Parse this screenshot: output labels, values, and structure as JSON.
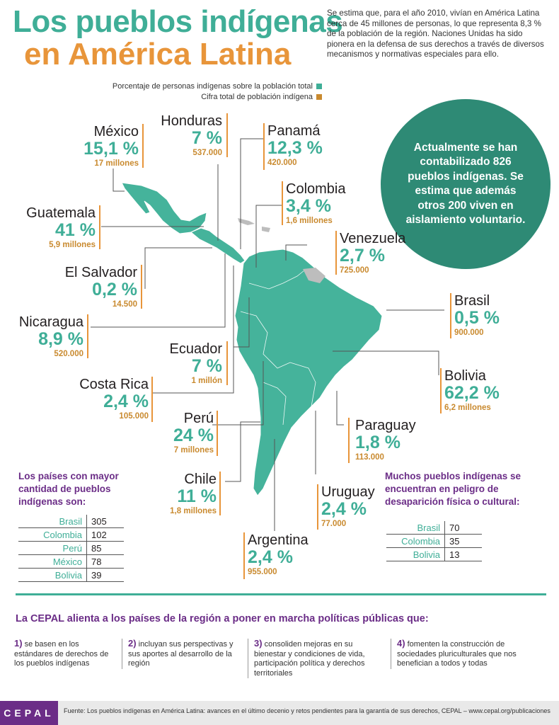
{
  "title": {
    "line1": "Los pueblos indígenas",
    "line2": "en América Latina"
  },
  "intro": "Se estima que, para el año 2010, vivían en América Latina cerca de 45 millones de personas, lo que representa 8,3 % de la población de la región. Naciones Unidas ha sido pionera en la defensa de sus derechos a través de diversos mecanismos y normativas especiales para ello.",
  "legend": {
    "percent": "Porcentaje de personas indígenas sobre la población total",
    "total": "Cifra total de población indígena",
    "percent_color": "#3fae97",
    "total_color": "#c98a2f"
  },
  "highlight": "Actualmente se han contabilizado 826 pueblos indígenas. Se estima que además otros 200 viven en aislamiento voluntario.",
  "countries": {
    "mexico": {
      "name": "México",
      "pct": "15,1 %",
      "pop": "17 millones"
    },
    "honduras": {
      "name": "Honduras",
      "pct": "7 %",
      "pop": "537.000"
    },
    "panama": {
      "name": "Panamá",
      "pct": "12,3 %",
      "pop": "420.000"
    },
    "colombia": {
      "name": "Colombia",
      "pct": "3,4 %",
      "pop": "1,6 millones"
    },
    "guatemala": {
      "name": "Guatemala",
      "pct": "41 %",
      "pop": "5,9 millones"
    },
    "venezuela": {
      "name": "Venezuela",
      "pct": "2,7 %",
      "pop": "725.000"
    },
    "el_salvador": {
      "name": "El Salvador",
      "pct": "0,2 %",
      "pop": "14.500"
    },
    "brasil": {
      "name": "Brasil",
      "pct": "0,5 %",
      "pop": "900.000"
    },
    "nicaragua": {
      "name": "Nicaragua",
      "pct": "8,9 %",
      "pop": "520.000"
    },
    "ecuador": {
      "name": "Ecuador",
      "pct": "7 %",
      "pop": "1 millón"
    },
    "bolivia": {
      "name": "Bolivia",
      "pct": "62,2 %",
      "pop": "6,2 millones"
    },
    "costa_rica": {
      "name": "Costa Rica",
      "pct": "2,4 %",
      "pop": "105.000"
    },
    "peru": {
      "name": "Perú",
      "pct": "24 %",
      "pop": "7 millones"
    },
    "paraguay": {
      "name": "Paraguay",
      "pct": "1,8 %",
      "pop": "113.000"
    },
    "chile": {
      "name": "Chile",
      "pct": "11 %",
      "pop": "1,8 millones"
    },
    "uruguay": {
      "name": "Uruguay",
      "pct": "2,4 %",
      "pop": "77.000"
    },
    "argentina": {
      "name": "Argentina",
      "pct": "2,4 %",
      "pop": "955.000"
    }
  },
  "most_peoples": {
    "title": "Los países con mayor cantidad de pueblos indígenas son:",
    "rows": [
      {
        "country": "Brasil",
        "value": "305"
      },
      {
        "country": "Colombia",
        "value": "102"
      },
      {
        "country": "Perú",
        "value": "85"
      },
      {
        "country": "México",
        "value": "78"
      },
      {
        "country": "Bolivia",
        "value": "39"
      }
    ]
  },
  "danger": {
    "title": "Muchos pueblos indígenas se encuentran en peligro de desaparición física o cultural:",
    "rows": [
      {
        "country": "Brasil",
        "value": "70"
      },
      {
        "country": "Colombia",
        "value": "35"
      },
      {
        "country": "Bolivia",
        "value": "13"
      }
    ]
  },
  "policies": {
    "title": "La CEPAL alienta a los países de la región a poner en marcha políticas públicas que:",
    "items": [
      {
        "num": "1)",
        "text": "se basen en los estándares de derechos de los pueblos indígenas"
      },
      {
        "num": "2)",
        "text": "incluyan sus perspectivas y sus aportes al desarrollo de la región"
      },
      {
        "num": "3)",
        "text": "consoliden mejoras en su bienestar y condiciones de vida, participación política y derechos territoriales"
      },
      {
        "num": "4)",
        "text": "fomenten la construcción de sociedades pluriculturales que nos benefician a todos y todas"
      }
    ]
  },
  "footer": {
    "logo": "CEPAL",
    "source": "Fuente: Los pueblos indígenas en América Latina: avances en el último decenio y retos pendientes para la garantía de sus derechos, CEPAL – www.cepal.org/publicaciones"
  }
}
